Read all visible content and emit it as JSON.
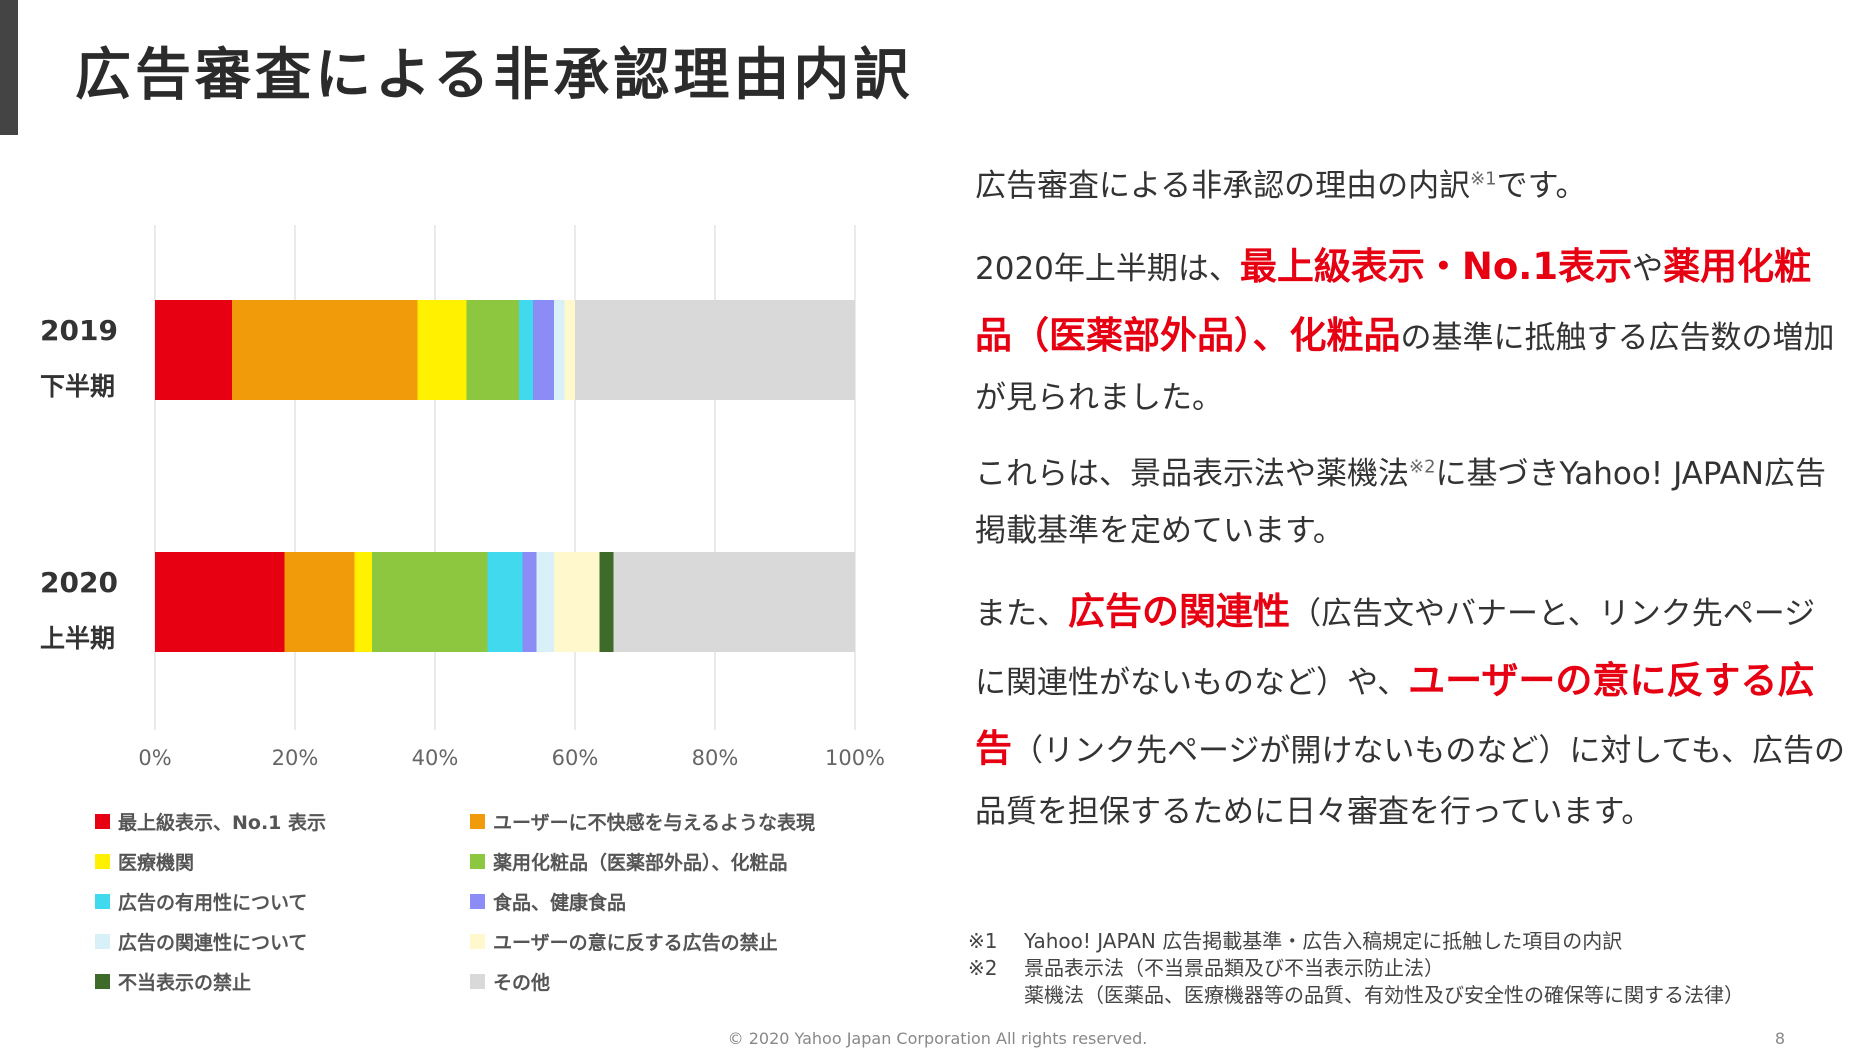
{
  "slide": {
    "title": "広告審査による非承認理由内訳",
    "copyright": "© 2020 Yahoo Japan Corporation All rights reserved.",
    "page_number": "8"
  },
  "chart_data": {
    "type": "bar",
    "orientation": "horizontal",
    "stacked": true,
    "categories": [
      [
        "2019",
        "下半期"
      ],
      [
        "2020",
        "上半期"
      ]
    ],
    "series": [
      {
        "name": "最上級表示、No.1 表示",
        "color": "#e60012",
        "values": [
          11,
          18.5
        ]
      },
      {
        "name": "ユーザーに不快感を与えるような表現",
        "color": "#f29b0a",
        "values": [
          26.5,
          10
        ]
      },
      {
        "name": "医療機関",
        "color": "#fff100",
        "values": [
          7,
          2.5
        ]
      },
      {
        "name": "薬用化粧品（医薬部外品）、化粧品",
        "color": "#8dc63f",
        "values": [
          7.5,
          16.5
        ]
      },
      {
        "name": "広告の有用性について",
        "color": "#41d9ee",
        "values": [
          2,
          5
        ]
      },
      {
        "name": "食品、健康食品",
        "color": "#8c8cf7",
        "values": [
          3,
          2
        ]
      },
      {
        "name": "広告の関連性について",
        "color": "#d8f0f8",
        "values": [
          1.5,
          2.5
        ]
      },
      {
        "name": "ユーザーの意に反する広告の禁止",
        "color": "#fff8cc",
        "values": [
          1.5,
          6.5
        ]
      },
      {
        "name": "不当表示の禁止",
        "color": "#3e6b2a",
        "values": [
          0,
          2
        ]
      },
      {
        "name": "その他",
        "color": "#d9d9d9",
        "values": [
          40,
          34.5
        ]
      }
    ],
    "xlim": [
      0,
      100
    ],
    "x_ticks": [
      "0%",
      "20%",
      "40%",
      "60%",
      "80%",
      "100%"
    ],
    "x_tick_values": [
      0,
      20,
      40,
      60,
      80,
      100
    ],
    "grid": true,
    "legend_position": "bottom"
  },
  "text": {
    "p1": [
      {
        "t": "広告審査による非承認の理由の内訳"
      },
      {
        "t": "※1",
        "sup": true
      },
      {
        "t": "です。"
      }
    ],
    "p2": [
      {
        "t": "2020年上半期は、"
      },
      {
        "t": "最上級表示・No.1表示",
        "hl": true
      },
      {
        "t": "や"
      },
      {
        "t": "薬用化粧品（医薬部外品）、化粧品",
        "hl": true
      },
      {
        "t": "の基準に抵触する広告数の増加が見られました。"
      }
    ],
    "p3": [
      {
        "t": "これらは、景品表示法や薬機法"
      },
      {
        "t": "※2",
        "sup": true
      },
      {
        "t": "に基づきYahoo! JAPAN広告掲載基準を定めています。"
      }
    ],
    "p4": [
      {
        "t": "また、"
      },
      {
        "t": "広告の関連性",
        "hl": true
      },
      {
        "t": "（広告文やバナーと、リンク先ページに関連性がないものなど）や、"
      },
      {
        "t": "ユーザーの意に反する広告",
        "hl": true
      },
      {
        "t": "（リンク先ページが開けないものなど）に対しても、広告の品質を担保するために日々審査を行っています。"
      }
    ],
    "accent_color": "#e60012"
  },
  "footnotes": {
    "n1_mark": "※1",
    "n1_text": "Yahoo! JAPAN 広告掲載基準・広告入稿規定に抵触した項目の内訳",
    "n2_mark": "※2",
    "n2_line1": "景品表示法（不当景品類及び不当表示防止法）",
    "n2_line2": "薬機法（医薬品、医療機器等の品質、有効性及び安全性の確保等に関する法律）"
  }
}
